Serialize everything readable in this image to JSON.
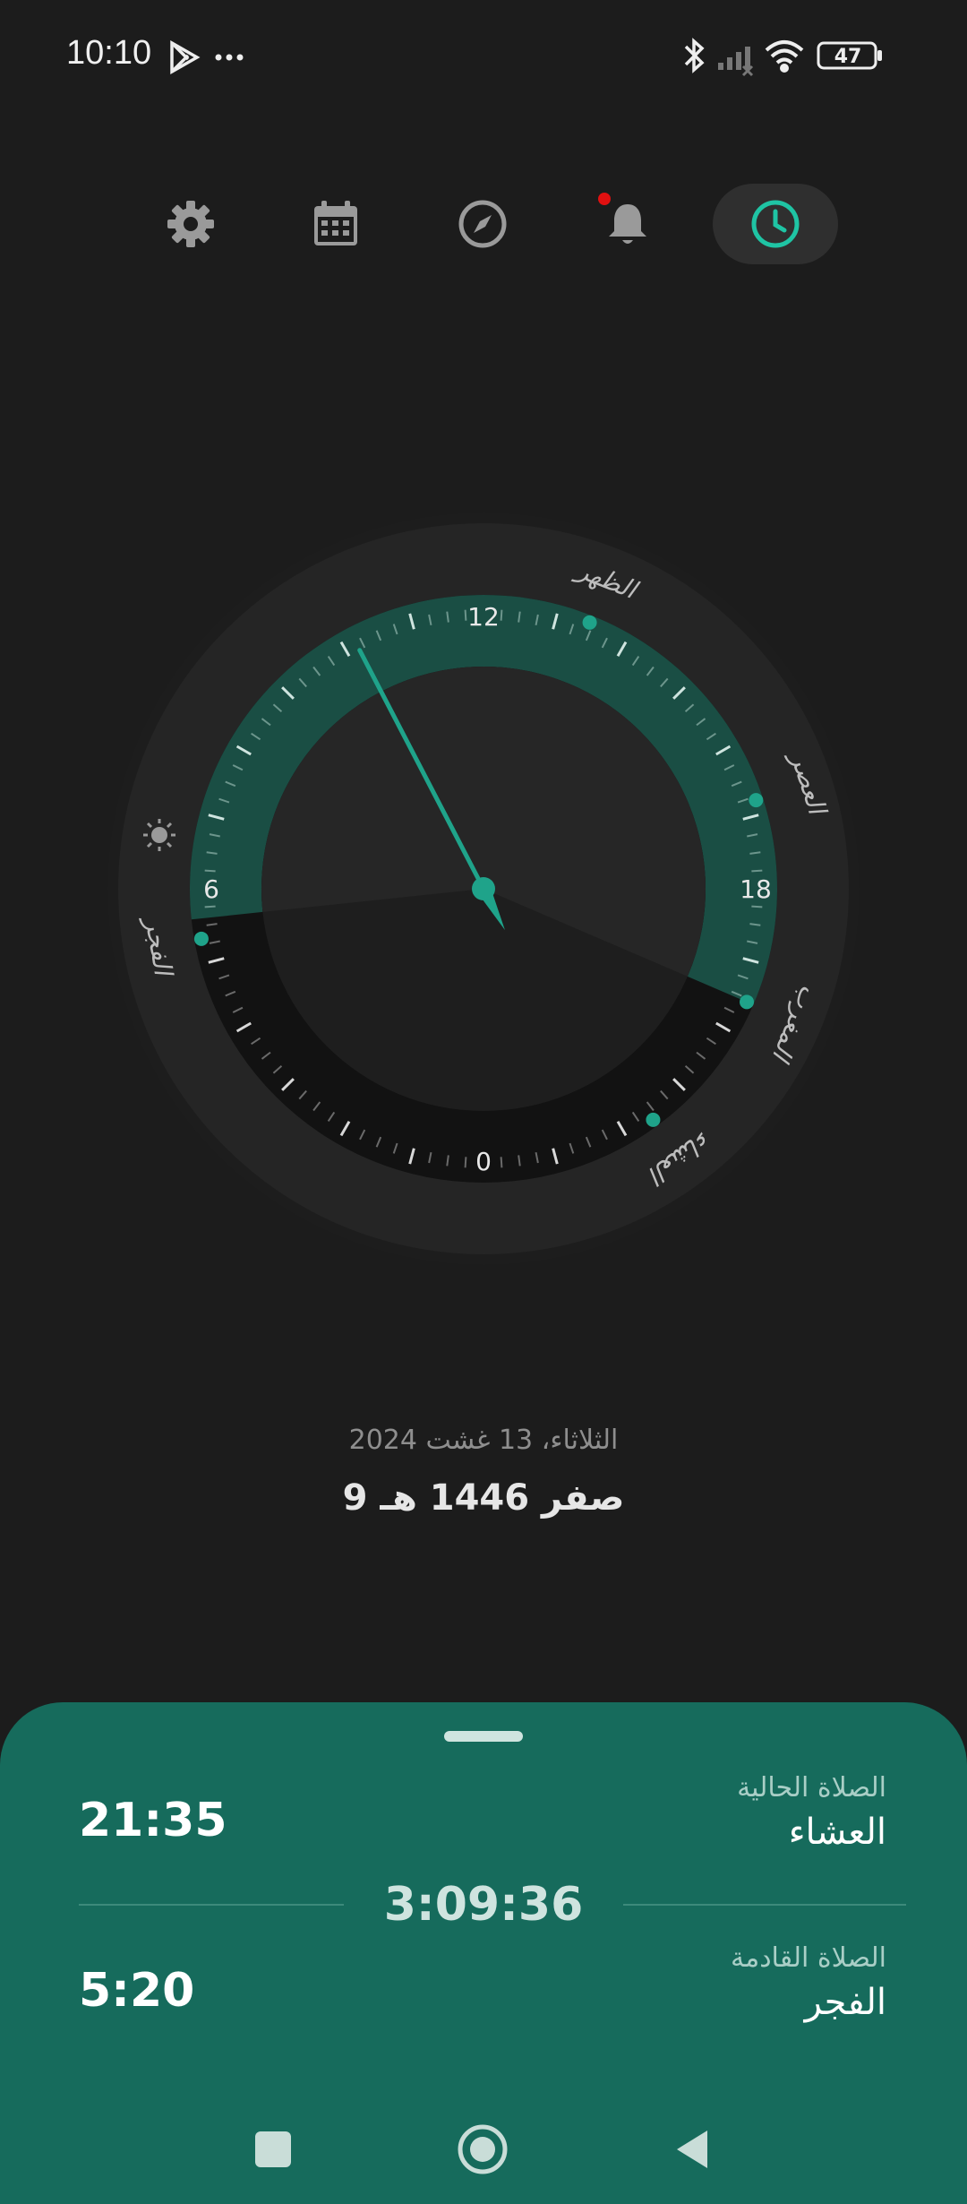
{
  "status_bar": {
    "time": "10:10",
    "battery": "47",
    "icons": [
      "play-store-icon",
      "more-icon",
      "bluetooth-icon",
      "signal-icon",
      "wifi-icon",
      "battery-icon"
    ]
  },
  "nav": {
    "items": [
      {
        "name": "settings",
        "icon": "gear-icon"
      },
      {
        "name": "calendar",
        "icon": "calendar-icon"
      },
      {
        "name": "qibla",
        "icon": "compass-icon"
      },
      {
        "name": "alerts",
        "icon": "bell-icon",
        "badge": true
      },
      {
        "name": "prayer-times",
        "icon": "clock-icon",
        "active": true
      }
    ]
  },
  "dial": {
    "hour_labels": [
      "12",
      "18",
      "0",
      "6"
    ],
    "prayer_labels": {
      "dhuhr": "الظهر",
      "asr": "العصر",
      "maghrib": "المغرب",
      "isha": "العشاء",
      "fajr": "الفجر"
    },
    "sunrise_icon": "sun-icon",
    "colors": {
      "day": "#1a4e44",
      "accent": "#1fa38a",
      "night": "#111111"
    }
  },
  "dates": {
    "gregorian": "الثلاثاء، 13 غشت 2024",
    "hijri": "9 صفر 1446 هـ"
  },
  "sheet": {
    "current_label": "الصلاة الحالية",
    "current_name": "العشاء",
    "current_time": "21:35",
    "countdown": "3:09:36",
    "next_label": "الصلاة القادمة",
    "next_name": "الفجر",
    "next_time": "5:20"
  },
  "system_nav": [
    "recents-icon",
    "home-icon",
    "back-icon"
  ]
}
